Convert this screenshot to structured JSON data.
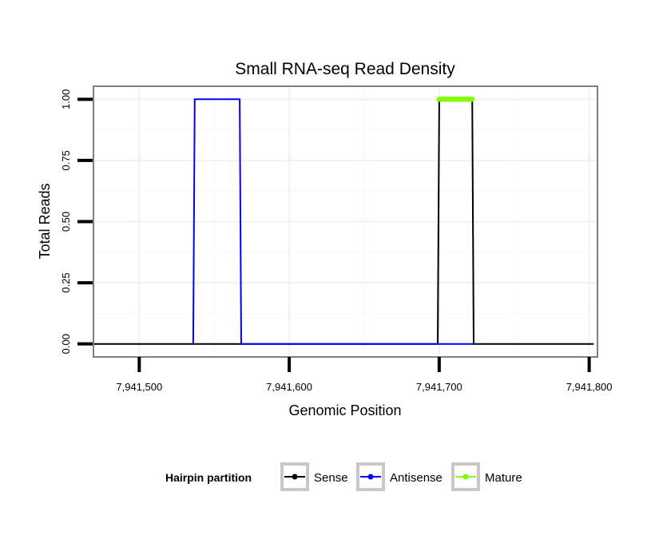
{
  "chart_data": {
    "type": "line",
    "title": "Small RNA-seq Read Density",
    "xlabel": "Genomic Position",
    "ylabel": "Total Reads",
    "xlim": [
      7941470,
      7941805
    ],
    "ylim": [
      -0.05,
      1.05
    ],
    "x_ticks": [
      7941500,
      7941600,
      7941700,
      7941800
    ],
    "x_tick_labels": [
      "7,941,500",
      "7,941,600",
      "7,941,700",
      "7,941,800"
    ],
    "y_ticks": [
      0,
      0.25,
      0.5,
      0.75,
      1.0
    ],
    "y_tick_labels": [
      "0.00",
      "0.25",
      "0.50",
      "0.75",
      "1.00"
    ],
    "grid": true,
    "legend_title": "Hairpin partition",
    "legend_position": "bottom",
    "series": [
      {
        "name": "Sense",
        "color": "#000000",
        "x": [
          7941470,
          7941699,
          7941700,
          7941722,
          7941723,
          7941803
        ],
        "y": [
          0,
          0,
          1,
          1,
          0,
          0
        ]
      },
      {
        "name": "Antisense",
        "color": "#0000ff",
        "x": [
          7941536,
          7941537,
          7941567,
          7941568,
          7941699,
          7941700,
          7941722,
          7941723
        ],
        "y": [
          0,
          1,
          1,
          0,
          0,
          0,
          0,
          0
        ]
      },
      {
        "name": "Mature",
        "color": "#7fff00",
        "x": [
          7941700,
          7941722
        ],
        "y": [
          1,
          1
        ]
      }
    ]
  }
}
